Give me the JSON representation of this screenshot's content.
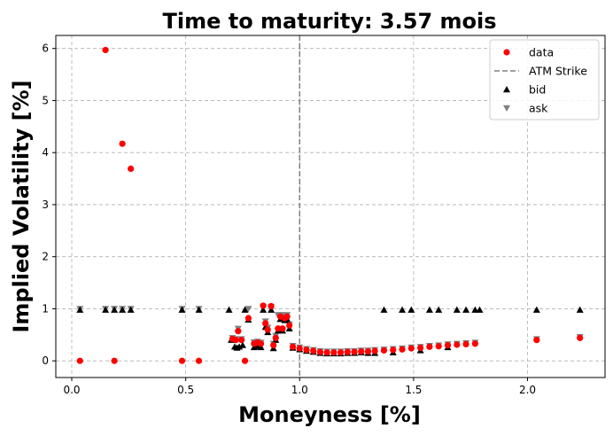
{
  "chart_data": {
    "type": "scatter",
    "title": "Time to maturity: 3.57 mois",
    "xlabel": "Moneyness [%]",
    "ylabel": "Implied Volatility [%]",
    "xlim": [
      -0.07,
      2.34
    ],
    "ylim": [
      -0.32,
      6.25
    ],
    "xticks": [
      0.0,
      0.5,
      1.0,
      1.5,
      2.0
    ],
    "xtick_labels": [
      "0.0",
      "0.5",
      "1.0",
      "1.5",
      "2.0"
    ],
    "yticks": [
      0,
      1,
      2,
      3,
      4,
      5,
      6
    ],
    "ytick_labels": [
      "0",
      "1",
      "2",
      "3",
      "4",
      "5",
      "6"
    ],
    "grid": true,
    "legend_position": "top-right",
    "atm_strike": 1.0,
    "colors": {
      "data": "#ff0000",
      "atm": "#808080",
      "bid": "#000000",
      "ask": "#808080",
      "grid": "#b0b0b0"
    },
    "series": [
      {
        "name": "data",
        "marker": "circle",
        "points": [
          [
            0.036,
            0.0
          ],
          [
            0.148,
            5.97
          ],
          [
            0.187,
            0.0
          ],
          [
            0.222,
            4.17
          ],
          [
            0.259,
            3.69
          ],
          [
            0.484,
            0.0
          ],
          [
            0.558,
            0.0
          ],
          [
            0.705,
            0.42
          ],
          [
            0.72,
            0.4
          ],
          [
            0.73,
            0.57
          ],
          [
            0.745,
            0.4
          ],
          [
            0.76,
            0.0
          ],
          [
            0.775,
            0.82
          ],
          [
            0.8,
            0.33
          ],
          [
            0.815,
            0.35
          ],
          [
            0.83,
            0.33
          ],
          [
            0.84,
            1.06
          ],
          [
            0.85,
            0.72
          ],
          [
            0.86,
            0.6
          ],
          [
            0.875,
            1.05
          ],
          [
            0.885,
            0.3
          ],
          [
            0.895,
            0.44
          ],
          [
            0.905,
            0.62
          ],
          [
            0.915,
            0.85
          ],
          [
            0.925,
            0.62
          ],
          [
            0.935,
            0.82
          ],
          [
            0.945,
            0.85
          ],
          [
            0.955,
            0.68
          ],
          [
            0.97,
            0.27
          ],
          [
            1.0,
            0.24
          ],
          [
            1.03,
            0.21
          ],
          [
            1.06,
            0.19
          ],
          [
            1.09,
            0.17
          ],
          [
            1.12,
            0.16
          ],
          [
            1.15,
            0.16
          ],
          [
            1.18,
            0.16
          ],
          [
            1.21,
            0.17
          ],
          [
            1.24,
            0.17
          ],
          [
            1.27,
            0.18
          ],
          [
            1.3,
            0.18
          ],
          [
            1.33,
            0.19
          ],
          [
            1.37,
            0.2
          ],
          [
            1.41,
            0.21
          ],
          [
            1.45,
            0.22
          ],
          [
            1.49,
            0.24
          ],
          [
            1.53,
            0.25
          ],
          [
            1.57,
            0.27
          ],
          [
            1.61,
            0.28
          ],
          [
            1.65,
            0.3
          ],
          [
            1.69,
            0.31
          ],
          [
            1.73,
            0.32
          ],
          [
            1.77,
            0.33
          ],
          [
            2.04,
            0.4
          ],
          [
            2.23,
            0.44
          ]
        ]
      },
      {
        "name": "ATM Strike",
        "marker": "dashed-line",
        "points": []
      },
      {
        "name": "bid",
        "marker": "triangle-up",
        "points": [
          [
            0.036,
            0.98
          ],
          [
            0.148,
            0.98
          ],
          [
            0.187,
            0.98
          ],
          [
            0.222,
            0.98
          ],
          [
            0.259,
            0.98
          ],
          [
            0.484,
            0.98
          ],
          [
            0.558,
            0.98
          ],
          [
            0.69,
            0.98
          ],
          [
            0.76,
            0.98
          ],
          [
            0.7,
            0.4
          ],
          [
            0.715,
            0.27
          ],
          [
            0.725,
            0.25
          ],
          [
            0.735,
            0.27
          ],
          [
            0.75,
            0.3
          ],
          [
            0.775,
            0.79
          ],
          [
            0.8,
            0.26
          ],
          [
            0.815,
            0.28
          ],
          [
            0.83,
            0.26
          ],
          [
            0.84,
            0.98
          ],
          [
            0.85,
            0.65
          ],
          [
            0.86,
            0.55
          ],
          [
            0.875,
            0.98
          ],
          [
            0.885,
            0.24
          ],
          [
            0.895,
            0.4
          ],
          [
            0.905,
            0.58
          ],
          [
            0.915,
            0.8
          ],
          [
            0.925,
            0.58
          ],
          [
            0.935,
            0.78
          ],
          [
            0.945,
            0.8
          ],
          [
            0.955,
            0.62
          ],
          [
            0.97,
            0.25
          ],
          [
            1.0,
            0.22
          ],
          [
            1.03,
            0.19
          ],
          [
            1.06,
            0.17
          ],
          [
            1.09,
            0.15
          ],
          [
            1.12,
            0.14
          ],
          [
            1.15,
            0.14
          ],
          [
            1.18,
            0.14
          ],
          [
            1.21,
            0.15
          ],
          [
            1.24,
            0.15
          ],
          [
            1.27,
            0.16
          ],
          [
            1.3,
            0.15
          ],
          [
            1.33,
            0.15
          ],
          [
            1.37,
            0.98
          ],
          [
            1.41,
            0.16
          ],
          [
            1.45,
            0.98
          ],
          [
            1.49,
            0.98
          ],
          [
            1.53,
            0.2
          ],
          [
            1.57,
            0.98
          ],
          [
            1.61,
            0.98
          ],
          [
            1.65,
            0.26
          ],
          [
            1.69,
            0.98
          ],
          [
            1.73,
            0.98
          ],
          [
            1.77,
            0.98
          ],
          [
            1.79,
            0.98
          ],
          [
            2.04,
            0.98
          ],
          [
            2.23,
            0.98
          ]
        ]
      },
      {
        "name": "ask",
        "marker": "triangle-down",
        "points": [
          [
            0.036,
            1.0
          ],
          [
            0.148,
            1.0
          ],
          [
            0.187,
            1.0
          ],
          [
            0.222,
            1.0
          ],
          [
            0.259,
            1.0
          ],
          [
            0.484,
            1.0
          ],
          [
            0.558,
            1.0
          ],
          [
            0.705,
            0.44
          ],
          [
            0.72,
            0.42
          ],
          [
            0.73,
            0.62
          ],
          [
            0.745,
            0.42
          ],
          [
            0.775,
            1.0
          ],
          [
            0.8,
            0.36
          ],
          [
            0.815,
            0.37
          ],
          [
            0.83,
            0.35
          ],
          [
            0.84,
            1.04
          ],
          [
            0.85,
            0.76
          ],
          [
            0.86,
            0.64
          ],
          [
            0.875,
            1.04
          ],
          [
            0.885,
            0.33
          ],
          [
            0.895,
            0.48
          ],
          [
            0.905,
            0.88
          ],
          [
            0.915,
            0.88
          ],
          [
            0.925,
            0.88
          ],
          [
            0.935,
            0.86
          ],
          [
            0.945,
            0.88
          ],
          [
            0.955,
            0.7
          ],
          [
            0.97,
            0.29
          ],
          [
            1.0,
            0.26
          ],
          [
            1.03,
            0.23
          ],
          [
            1.06,
            0.21
          ],
          [
            1.09,
            0.19
          ],
          [
            1.12,
            0.18
          ],
          [
            1.15,
            0.18
          ],
          [
            1.18,
            0.18
          ],
          [
            1.21,
            0.19
          ],
          [
            1.24,
            0.19
          ],
          [
            1.27,
            0.2
          ],
          [
            1.3,
            0.2
          ],
          [
            1.33,
            0.21
          ],
          [
            1.37,
            0.22
          ],
          [
            1.41,
            0.23
          ],
          [
            1.45,
            0.24
          ],
          [
            1.49,
            0.26
          ],
          [
            1.53,
            0.27
          ],
          [
            1.57,
            0.29
          ],
          [
            1.61,
            0.3
          ],
          [
            1.65,
            0.32
          ],
          [
            1.69,
            0.33
          ],
          [
            1.73,
            0.34
          ],
          [
            1.77,
            0.35
          ],
          [
            2.04,
            0.42
          ],
          [
            2.23,
            0.46
          ]
        ]
      }
    ]
  }
}
